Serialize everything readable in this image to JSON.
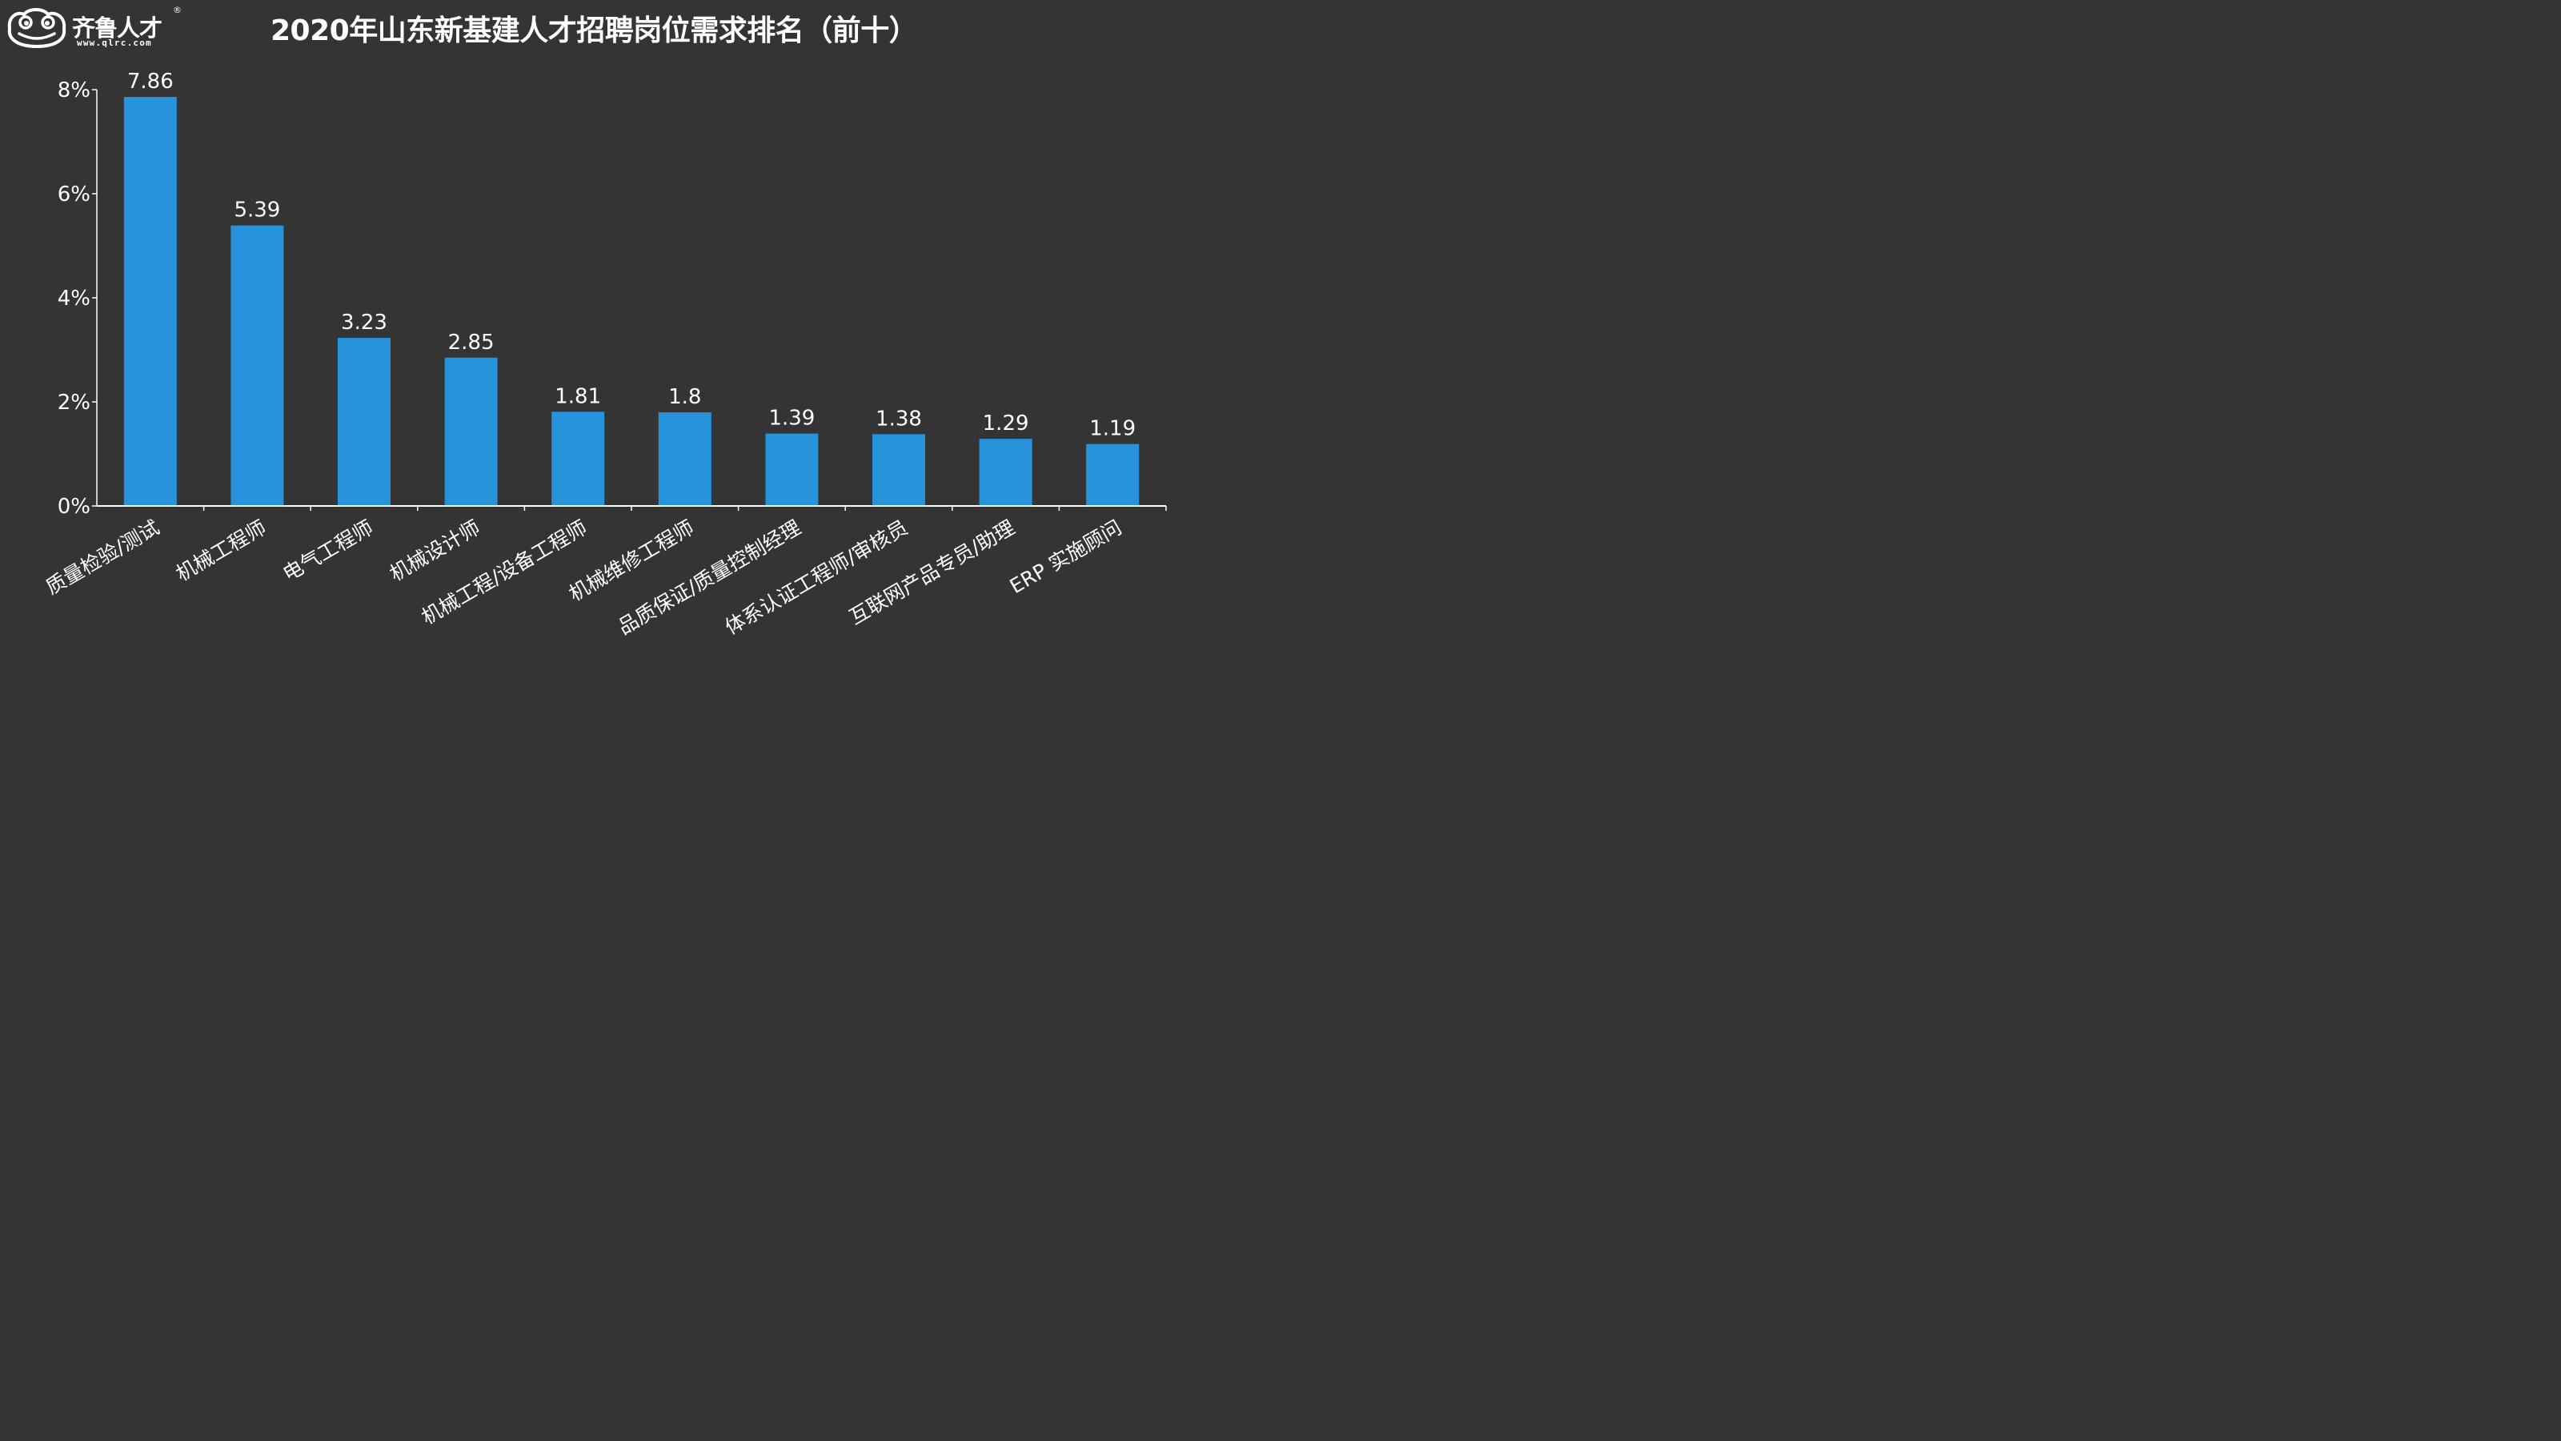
{
  "header": {
    "brand_name": "齐鲁人才",
    "brand_reg": "®",
    "brand_url": "www.qlrc.com",
    "title": "2020年山东新基建人才招聘岗位需求排名（前十）"
  },
  "colors": {
    "background": "#353435",
    "bar": "#2693dc",
    "text": "#ffffff",
    "axis": "#ffffff"
  },
  "chart_data": {
    "type": "bar",
    "title": "2020年山东新基建人才招聘岗位需求排名（前十）",
    "categories": [
      "质量检验/测试",
      "机械工程师",
      "电气工程师",
      "机械设计师",
      "机械工程/设备工程师",
      "机械维修工程师",
      "品质保证/质量控制经理",
      "体系认证工程师/审核员",
      "互联网产品专员/助理",
      "ERP 实施顾问"
    ],
    "values": [
      7.86,
      5.39,
      3.23,
      2.85,
      1.81,
      1.8,
      1.39,
      1.38,
      1.29,
      1.19
    ],
    "data_labels": [
      "7.86",
      "5.39",
      "3.23",
      "2.85",
      "1.81",
      "1.8",
      "1.39",
      "1.38",
      "1.29",
      "1.19"
    ],
    "y_ticks": [
      "0%",
      "2%",
      "4%",
      "6%",
      "8%"
    ],
    "y_tick_values": [
      0,
      2,
      4,
      6,
      8
    ],
    "ylim": [
      0,
      8
    ],
    "xlabel": "",
    "ylabel": "",
    "grid": false,
    "legend": "none"
  }
}
